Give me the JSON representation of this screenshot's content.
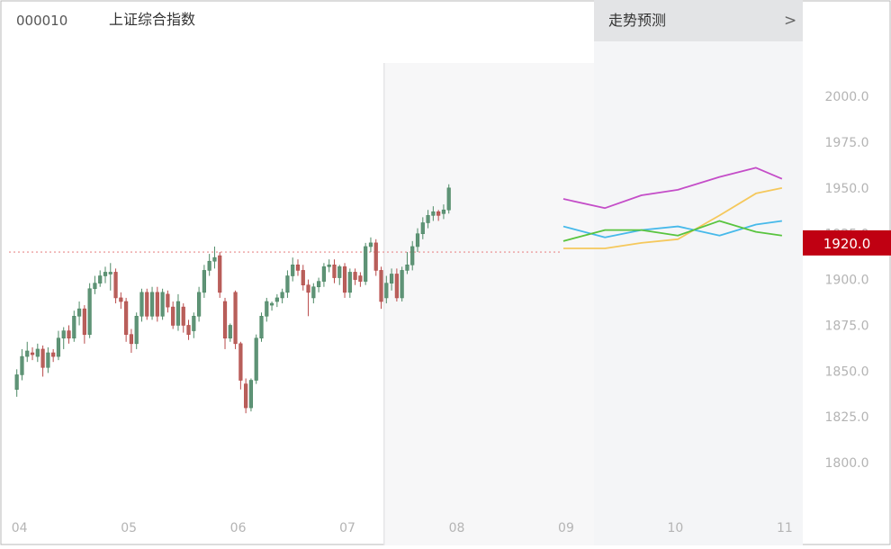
{
  "header": {
    "code": "000010",
    "name": "上证综合指数",
    "forecast_label": "走势预测",
    "forecast_arrow": ">"
  },
  "current_price": {
    "label": "1920.0",
    "value": 1920.0
  },
  "colors": {
    "up": "#4e8a66",
    "up_fill": "#5f9377",
    "down": "#b94a4a",
    "down_fill": "#b7605b",
    "price_badge": "#c00012",
    "reference_line": "#e88a8a",
    "forecast_bg": "#f4f5f7",
    "forecast_header_bg": "#e3e4e6"
  },
  "chart_data": {
    "type": "candlestick",
    "y_axis": {
      "ticks": [
        2000.0,
        1975.0,
        1950.0,
        1925.0,
        1900.0,
        1875.0,
        1850.0,
        1825.0,
        1800.0
      ],
      "tick_labels": [
        "2000.0",
        "1975.0",
        "1950.0",
        "1925.0",
        "1900.0",
        "1875.0",
        "1850.0",
        "1825.0",
        "1800.0"
      ],
      "ylim": [
        1775,
        2030
      ]
    },
    "x_axis": {
      "months": [
        "04",
        "05",
        "06",
        "07",
        "08",
        "09",
        "10",
        "11"
      ],
      "month_positions": [
        0,
        21,
        42,
        63,
        84,
        105,
        126,
        147
      ],
      "range": [
        -1.5,
        151
      ]
    },
    "reference_line": 1915,
    "forecast_start": 105,
    "candles": [
      [
        1840,
        1848,
        1836,
        1851
      ],
      [
        1848,
        1858,
        1845,
        1862
      ],
      [
        1858,
        1861,
        1855,
        1866
      ],
      [
        1860,
        1859,
        1856,
        1863
      ],
      [
        1858,
        1862,
        1855,
        1865
      ],
      [
        1862,
        1852,
        1847,
        1864
      ],
      [
        1852,
        1860,
        1849,
        1863
      ],
      [
        1860,
        1858,
        1855,
        1862
      ],
      [
        1858,
        1868,
        1856,
        1872
      ],
      [
        1868,
        1872,
        1862,
        1874
      ],
      [
        1872,
        1868,
        1865,
        1875
      ],
      [
        1868,
        1880,
        1866,
        1883
      ],
      [
        1880,
        1884,
        1875,
        1888
      ],
      [
        1884,
        1870,
        1865,
        1886
      ],
      [
        1870,
        1895,
        1868,
        1898
      ],
      [
        1895,
        1898,
        1892,
        1902
      ],
      [
        1898,
        1902,
        1896,
        1905
      ],
      [
        1902,
        1904,
        1898,
        1907
      ],
      [
        1903,
        1904,
        1894,
        1909
      ],
      [
        1904,
        1890,
        1887,
        1906
      ],
      [
        1890,
        1888,
        1884,
        1893
      ],
      [
        1888,
        1870,
        1866,
        1890
      ],
      [
        1870,
        1865,
        1860,
        1873
      ],
      [
        1865,
        1880,
        1862,
        1882
      ],
      [
        1880,
        1893,
        1877,
        1895
      ],
      [
        1893,
        1880,
        1878,
        1895
      ],
      [
        1880,
        1893,
        1878,
        1896
      ],
      [
        1893,
        1880,
        1877,
        1896
      ],
      [
        1880,
        1893,
        1878,
        1895
      ],
      [
        1892,
        1885,
        1882,
        1894
      ],
      [
        1885,
        1875,
        1873,
        1888
      ],
      [
        1875,
        1888,
        1872,
        1892
      ],
      [
        1885,
        1875,
        1871,
        1887
      ],
      [
        1875,
        1870,
        1867,
        1878
      ],
      [
        1872,
        1880,
        1868,
        1882
      ],
      [
        1880,
        1893,
        1877,
        1896
      ],
      [
        1893,
        1905,
        1890,
        1908
      ],
      [
        1905,
        1910,
        1902,
        1914
      ],
      [
        1910,
        1912,
        1906,
        1918
      ],
      [
        1913,
        1893,
        1890,
        1915
      ],
      [
        1888,
        1868,
        1862,
        1890
      ],
      [
        1868,
        1875,
        1866,
        1876
      ],
      [
        1893,
        1865,
        1862,
        1894
      ],
      [
        1865,
        1845,
        1840,
        1866
      ],
      [
        1843,
        1830,
        1827,
        1846
      ],
      [
        1830,
        1845,
        1828,
        1846
      ],
      [
        1845,
        1868,
        1843,
        1870
      ],
      [
        1868,
        1880,
        1866,
        1882
      ],
      [
        1880,
        1888,
        1877,
        1890
      ],
      [
        1886,
        1887,
        1883,
        1888
      ],
      [
        1888,
        1890,
        1885,
        1892
      ],
      [
        1890,
        1893,
        1887,
        1895
      ],
      [
        1893,
        1902,
        1890,
        1905
      ],
      [
        1902,
        1908,
        1899,
        1912
      ],
      [
        1908,
        1905,
        1902,
        1911
      ],
      [
        1905,
        1897,
        1894,
        1908
      ],
      [
        1897,
        1893,
        1880,
        1900
      ],
      [
        1890,
        1896,
        1887,
        1898
      ],
      [
        1896,
        1899,
        1893,
        1901
      ],
      [
        1899,
        1907,
        1896,
        1909
      ],
      [
        1907,
        1908,
        1904,
        1911
      ],
      [
        1908,
        1901,
        1898,
        1911
      ],
      [
        1901,
        1907,
        1897,
        1908
      ],
      [
        1907,
        1893,
        1890,
        1909
      ],
      [
        1893,
        1904,
        1890,
        1906
      ],
      [
        1904,
        1900,
        1897,
        1906
      ],
      [
        1902,
        1899,
        1896,
        1904
      ],
      [
        1899,
        1918,
        1897,
        1920
      ],
      [
        1918,
        1920,
        1915,
        1923
      ],
      [
        1920,
        1905,
        1902,
        1922
      ],
      [
        1905,
        1888,
        1884,
        1907
      ],
      [
        1890,
        1898,
        1887,
        1902
      ],
      [
        1898,
        1903,
        1894,
        1906
      ],
      [
        1903,
        1890,
        1888,
        1906
      ],
      [
        1890,
        1905,
        1888,
        1907
      ],
      [
        1905,
        1908,
        1903,
        1915
      ],
      [
        1908,
        1918,
        1905,
        1921
      ],
      [
        1918,
        1925,
        1915,
        1928
      ],
      [
        1925,
        1931,
        1922,
        1934
      ],
      [
        1931,
        1935,
        1928,
        1938
      ],
      [
        1935,
        1937,
        1932,
        1940
      ],
      [
        1937,
        1935,
        1932,
        1938
      ],
      [
        1936,
        1938,
        1933,
        1941
      ],
      [
        1938,
        1950,
        1936,
        1952
      ]
    ],
    "forecast": {
      "x": [
        105,
        113,
        120,
        127,
        135,
        142,
        147
      ],
      "series": [
        {
          "color": "#c44dc8",
          "values": [
            1944,
            1939,
            1946,
            1949,
            1956,
            1961,
            1955
          ]
        },
        {
          "color": "#f5c85c",
          "values": [
            1917,
            1917,
            1920,
            1922,
            1935,
            1947,
            1950
          ]
        },
        {
          "color": "#46b9ea",
          "values": [
            1929,
            1923,
            1927,
            1929,
            1924,
            1930,
            1932
          ]
        },
        {
          "color": "#58c43e",
          "values": [
            1921,
            1927,
            1927,
            1924,
            1932,
            1926,
            1924
          ]
        }
      ]
    }
  }
}
